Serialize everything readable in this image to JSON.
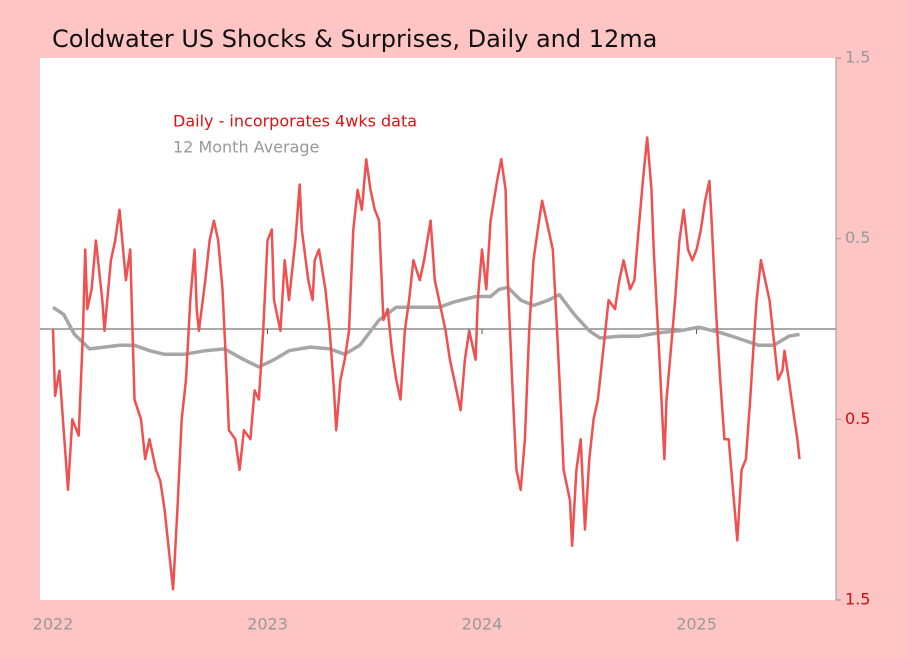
{
  "chart_data": {
    "type": "line",
    "title": "Coldwater US Shocks & Surprises, Daily and  12ma",
    "xlim": [
      2022,
      2025.65
    ],
    "xticks": [
      2022,
      2023,
      2024,
      2025
    ],
    "ylim": [
      -1.5,
      1.5
    ],
    "yticks": [
      1.5,
      0.5,
      {
        "value": -0.5,
        "label": "0.5"
      },
      {
        "value": -1.5,
        "label": "1.5"
      }
    ],
    "ytick_colors": [
      "#999999",
      "#999999",
      "#cc1111",
      "#cc1111"
    ],
    "series": [
      {
        "name": "Daily - incorporates 4wks data",
        "color": "#f05050",
        "x": [
          2022.0,
          2022.01,
          2022.03,
          2022.05,
          2022.07,
          2022.09,
          2022.12,
          2022.14,
          2022.15,
          2022.16,
          2022.18,
          2022.2,
          2022.23,
          2022.24,
          2022.27,
          2022.29,
          2022.31,
          2022.34,
          2022.36,
          2022.38,
          2022.41,
          2022.43,
          2022.45,
          2022.48,
          2022.5,
          2022.52,
          2022.54,
          2022.56,
          2022.58,
          2022.6,
          2022.62,
          2022.64,
          2022.66,
          2022.67,
          2022.68,
          2022.71,
          2022.73,
          2022.75,
          2022.77,
          2022.79,
          2022.81,
          2022.82,
          2022.85,
          2022.87,
          2022.89,
          2022.92,
          2022.94,
          2022.96,
          2022.98,
          2023.0,
          2023.02,
          2023.03,
          2023.06,
          2023.08,
          2023.1,
          2023.13,
          2023.15,
          2023.16,
          2023.19,
          2023.21,
          2023.22,
          2023.24,
          2023.27,
          2023.29,
          2023.31,
          2023.32,
          2023.34,
          2023.36,
          2023.38,
          2023.4,
          2023.42,
          2023.44,
          2023.46,
          2023.48,
          2023.5,
          2023.52,
          2023.54,
          2023.56,
          2023.58,
          2023.6,
          2023.62,
          2023.64,
          2023.66,
          2023.68,
          2023.71,
          2023.73,
          2023.76,
          2023.78,
          2023.8,
          2023.83,
          2023.85,
          2023.87,
          2023.9,
          2023.92,
          2023.94,
          2023.97,
          2023.98,
          2024.0,
          2024.02,
          2024.04,
          2024.07,
          2024.09,
          2024.11,
          2024.12,
          2024.14,
          2024.16,
          2024.18,
          2024.2,
          2024.22,
          2024.24,
          2024.26,
          2024.28,
          2024.31,
          2024.33,
          2024.35,
          2024.37,
          2024.38,
          2024.41,
          2024.42,
          2024.44,
          2024.46,
          2024.48,
          2024.5,
          2024.52,
          2024.54,
          2024.56,
          2024.58,
          2024.59,
          2024.62,
          2024.64,
          2024.66,
          2024.69,
          2024.71,
          2024.73,
          2024.75,
          2024.77,
          2024.79,
          2024.8,
          2024.83,
          2024.85,
          2024.86,
          2024.88,
          2024.9,
          2024.92,
          2024.94,
          2024.96,
          2024.98,
          2025.0,
          2025.02,
          2025.04,
          2025.06,
          2025.07,
          2025.09,
          2025.11,
          2025.13,
          2025.15,
          2025.17,
          2025.19,
          2025.21,
          2025.23,
          2025.25,
          2025.27,
          2025.28,
          2025.3,
          2025.32,
          2025.34,
          2025.36,
          2025.38,
          2025.4,
          2025.41,
          2025.43,
          2025.45,
          2025.47,
          2025.48
        ],
        "values": [
          0,
          -0.37,
          -0.23,
          -0.56,
          -0.89,
          -0.5,
          -0.59,
          -0.01,
          0.44,
          0.11,
          0.22,
          0.49,
          0.16,
          -0.01,
          0.38,
          0.49,
          0.66,
          0.27,
          0.44,
          -0.39,
          -0.5,
          -0.72,
          -0.61,
          -0.78,
          -0.84,
          -1.0,
          -1.22,
          -1.44,
          -1.0,
          -0.5,
          -0.28,
          0.16,
          0.44,
          0.11,
          -0.01,
          0.27,
          0.49,
          0.6,
          0.49,
          0.22,
          -0.28,
          -0.56,
          -0.61,
          -0.78,
          -0.56,
          -0.61,
          -0.34,
          -0.39,
          -0.01,
          0.49,
          0.55,
          0.16,
          -0.01,
          0.38,
          0.16,
          0.49,
          0.8,
          0.55,
          0.27,
          0.16,
          0.38,
          0.44,
          0.22,
          -0.01,
          -0.34,
          -0.56,
          -0.28,
          -0.17,
          -0.01,
          0.55,
          0.77,
          0.66,
          0.94,
          0.77,
          0.66,
          0.6,
          0.05,
          0.11,
          -0.12,
          -0.28,
          -0.39,
          -0.01,
          0.16,
          0.38,
          0.27,
          0.38,
          0.6,
          0.27,
          0.16,
          -0.01,
          -0.17,
          -0.28,
          -0.45,
          -0.17,
          -0.01,
          -0.17,
          0.16,
          0.44,
          0.22,
          0.6,
          0.82,
          0.94,
          0.77,
          0.27,
          -0.28,
          -0.78,
          -0.89,
          -0.61,
          -0.01,
          0.38,
          0.55,
          0.71,
          0.55,
          0.44,
          -0.01,
          -0.5,
          -0.78,
          -0.95,
          -1.2,
          -0.78,
          -0.61,
          -1.11,
          -0.72,
          -0.5,
          -0.39,
          -0.17,
          0.05,
          0.16,
          0.11,
          0.27,
          0.38,
          0.22,
          0.27,
          0.55,
          0.82,
          1.06,
          0.77,
          0.44,
          -0.23,
          -0.72,
          -0.39,
          -0.12,
          0.16,
          0.49,
          0.66,
          0.44,
          0.38,
          0.44,
          0.55,
          0.71,
          0.82,
          0.6,
          0.11,
          -0.28,
          -0.61,
          -0.61,
          -0.89,
          -1.17,
          -0.78,
          -0.72,
          -0.39,
          -0.01,
          0.16,
          0.38,
          0.27,
          0.16,
          -0.06,
          -0.28,
          -0.23,
          -0.12,
          -0.28,
          -0.45,
          -0.61,
          -0.72
        ]
      },
      {
        "name": "12 Month Average",
        "color": "#a6a6a6",
        "x": [
          2022.0,
          2022.05,
          2022.1,
          2022.17,
          2022.24,
          2022.31,
          2022.38,
          2022.45,
          2022.52,
          2022.61,
          2022.71,
          2022.8,
          2022.89,
          2022.96,
          2023.03,
          2023.1,
          2023.2,
          2023.29,
          2023.36,
          2023.43,
          2023.52,
          2023.6,
          2023.71,
          2023.8,
          2023.87,
          2023.97,
          2024.04,
          2024.08,
          2024.12,
          2024.18,
          2024.24,
          2024.31,
          2024.36,
          2024.43,
          2024.5,
          2024.55,
          2024.64,
          2024.73,
          2024.83,
          2024.92,
          2025.01,
          2025.11,
          2025.19,
          2025.29,
          2025.36,
          2025.43,
          2025.48
        ],
        "values": [
          0.12,
          0.08,
          -0.03,
          -0.11,
          -0.1,
          -0.09,
          -0.09,
          -0.12,
          -0.14,
          -0.14,
          -0.12,
          -0.11,
          -0.17,
          -0.21,
          -0.17,
          -0.12,
          -0.1,
          -0.11,
          -0.14,
          -0.09,
          0.05,
          0.12,
          0.12,
          0.12,
          0.15,
          0.18,
          0.18,
          0.22,
          0.23,
          0.16,
          0.13,
          0.16,
          0.19,
          0.08,
          -0.01,
          -0.05,
          -0.04,
          -0.04,
          -0.02,
          -0.01,
          0.01,
          -0.02,
          -0.05,
          -0.09,
          -0.09,
          -0.04,
          -0.03
        ]
      }
    ]
  }
}
